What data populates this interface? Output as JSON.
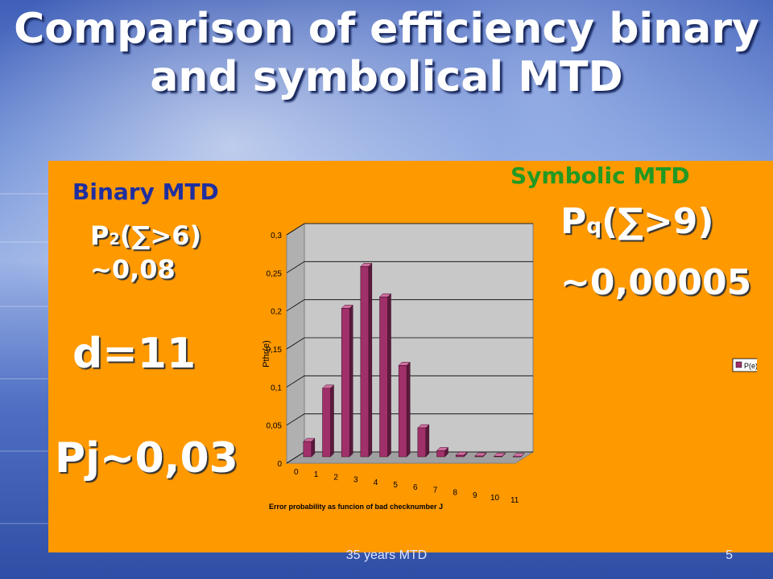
{
  "slide": {
    "title_line1": "Comparison of efficiency binary",
    "title_line2": "and symbolical MTD",
    "footer": "35 years MTD",
    "page_number": "5",
    "colors": {
      "panel": "#ff9900",
      "binary_heading": "#1f2fa0",
      "symbolic_heading": "#229922",
      "bar": "#a0306a"
    }
  },
  "binary": {
    "heading": "Binary MTD",
    "prob_prefix": "P",
    "prob_sub": "2",
    "prob_suffix": "(∑>6)",
    "prob_value": "~0,08",
    "distance": "d=11",
    "pj": "Pj~0,03"
  },
  "symbolic": {
    "heading": "Symbolic MTD",
    "prob_prefix": "P",
    "prob_sub": "q",
    "prob_suffix": "(∑>9)",
    "prob_value": "~0,00005"
  },
  "chart_data": {
    "type": "bar",
    "categories": [
      "0",
      "1",
      "2",
      "3",
      "4",
      "5",
      "6",
      "7",
      "8",
      "9",
      "10",
      "11"
    ],
    "series": [
      {
        "name": "P(e)",
        "values": [
          0.02,
          0.09,
          0.195,
          0.25,
          0.21,
          0.12,
          0.038,
          0.008,
          0.002,
          0.001,
          0.0007,
          0.0003
        ]
      }
    ],
    "xlabel": "Error probability as funcion of bad checknumber J",
    "ylabel": "Pthr(e)",
    "ylim": [
      0,
      0.3
    ],
    "yticks": [
      "0",
      "0,05",
      "0,1",
      "0,15",
      "0,2",
      "0,25",
      "0,3"
    ],
    "grid": true,
    "legend": "right"
  }
}
